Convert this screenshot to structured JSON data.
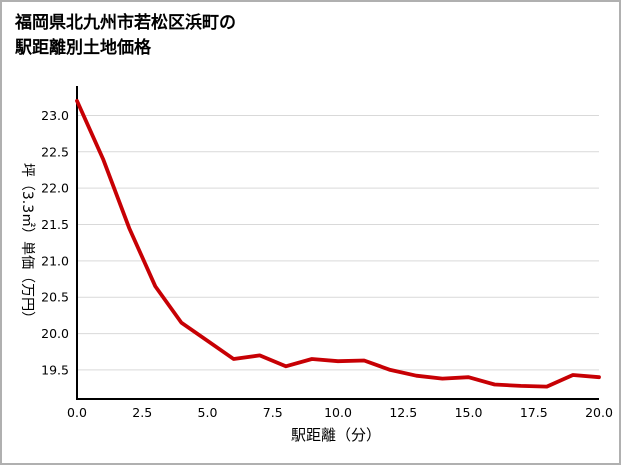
{
  "title": {
    "line1": "福岡県北九州市若松区浜町の",
    "line2": "駅距離別土地価格"
  },
  "chart_data": {
    "type": "line",
    "title": "福岡県北九州市若松区浜町の駅距離別土地価格",
    "xlabel": "駅距離（分）",
    "ylabel": "坪（3.3㎡）単価（万円）",
    "x": [
      0,
      1,
      2,
      3,
      4,
      5,
      6,
      7,
      8,
      9,
      10,
      11,
      12,
      13,
      14,
      15,
      16,
      17,
      18,
      19,
      20
    ],
    "y": [
      23.2,
      22.4,
      21.45,
      20.65,
      20.15,
      19.9,
      19.65,
      19.7,
      19.55,
      19.65,
      19.62,
      19.63,
      19.5,
      19.42,
      19.38,
      19.4,
      19.3,
      19.28,
      19.27,
      19.43,
      19.4
    ],
    "xlim": [
      0,
      20
    ],
    "ylim": [
      19.1,
      23.35
    ],
    "xticks": [
      0,
      2.5,
      5,
      7.5,
      10,
      12.5,
      15,
      17.5,
      20
    ],
    "xtick_labels": [
      "0.0",
      "2.5",
      "5.0",
      "7.5",
      "10.0",
      "12.5",
      "15.0",
      "17.5",
      "20.0"
    ],
    "yticks": [
      19.5,
      20.0,
      20.5,
      21.0,
      21.5,
      22.0,
      22.5,
      23.0
    ],
    "ytick_labels": [
      "19.5",
      "20.0",
      "20.5",
      "21.0",
      "21.5",
      "22.0",
      "22.5",
      "23.0"
    ],
    "line_color": "#c70004",
    "grid_color": "#d9d9d9",
    "axis_color": "#000000",
    "grid": "horizontal",
    "legend": "none"
  }
}
